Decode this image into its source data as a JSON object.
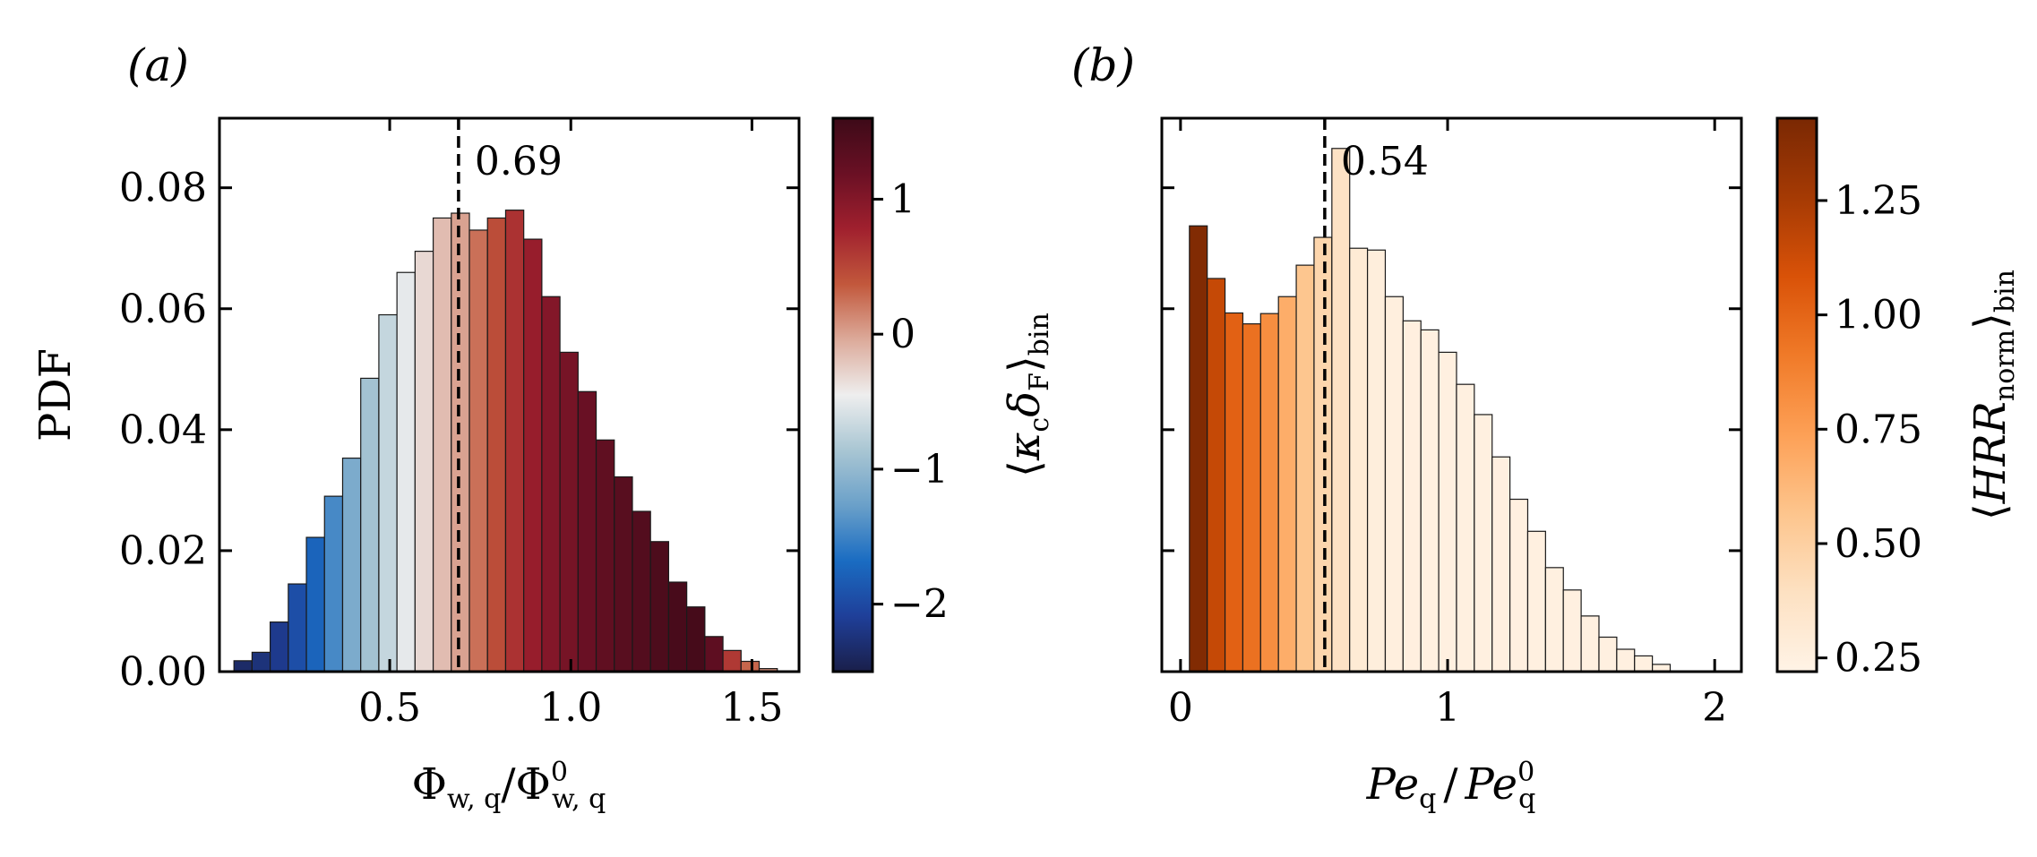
{
  "chart_data": [
    {
      "panel_label": "(a)",
      "type": "bar",
      "xlabel": "Φ_{w, q}/Φ⁰_{w, q}",
      "xlabel_main": "Φ",
      "xlabel_sub": "w, q",
      "xlabel_sep": "/",
      "xlabel_main2": "Φ",
      "xlabel_sup2": "0",
      "xlabel_sub2": "w, q",
      "ylabel": "PDF",
      "xlim": [
        0.03,
        1.63
      ],
      "ylim": [
        0,
        0.0915
      ],
      "xticks": [
        0.5,
        1.0,
        1.5
      ],
      "xtick_labels": [
        "0.5",
        "1.0",
        "1.5"
      ],
      "yticks": [
        0.0,
        0.02,
        0.04,
        0.06,
        0.08
      ],
      "ytick_labels": [
        "0.00",
        "0.02",
        "0.04",
        "0.06",
        "0.08"
      ],
      "vline": {
        "x": 0.69,
        "label": "0.69"
      },
      "bin_width": 0.05,
      "bin_starts": [
        0.07,
        0.12,
        0.17,
        0.22,
        0.27,
        0.32,
        0.37,
        0.42,
        0.47,
        0.52,
        0.57,
        0.62,
        0.67,
        0.72,
        0.77,
        0.82,
        0.87,
        0.92,
        0.97,
        1.02,
        1.07,
        1.12,
        1.17,
        1.22,
        1.27,
        1.32,
        1.37,
        1.42,
        1.47,
        1.52
      ],
      "values": [
        0.0018,
        0.0032,
        0.0082,
        0.0145,
        0.0222,
        0.029,
        0.0353,
        0.0485,
        0.059,
        0.066,
        0.0695,
        0.075,
        0.0758,
        0.073,
        0.075,
        0.0763,
        0.0715,
        0.062,
        0.0528,
        0.0463,
        0.0383,
        0.0322,
        0.0265,
        0.0215,
        0.0148,
        0.0107,
        0.0058,
        0.0035,
        0.0017,
        0.0005
      ],
      "bin_color_values": [
        -2.35,
        -2.25,
        -2.15,
        -1.95,
        -1.75,
        -1.45,
        -1.15,
        -0.9,
        -0.7,
        -0.5,
        -0.32,
        -0.15,
        0.0,
        0.25,
        0.45,
        0.65,
        0.85,
        1.0,
        1.1,
        1.2,
        1.28,
        1.35,
        1.4,
        1.45,
        1.5,
        1.52,
        1.3,
        0.6,
        0.3,
        0.1
      ],
      "colorbar": {
        "label": "⟨κ_c δ_F⟩_bin",
        "label_parts": {
          "open": "⟨",
          "kappa": "κ",
          "kappa_sub": "c",
          "delta": "δ",
          "delta_sub": "F",
          "close": "⟩",
          "bin_sub": "bin"
        },
        "vmin": -2.5,
        "vmax": 1.6,
        "ticks": [
          -2,
          -1,
          0,
          1
        ],
        "tick_labels": [
          "−2",
          "−1",
          "0",
          "1"
        ],
        "colormap": "diverging blue-white-red",
        "stops": [
          "#1a1f4a",
          "#1f3f99",
          "#1a6cc2",
          "#6aa0c9",
          "#a9c6d3",
          "#eeeeee",
          "#dcaa9a",
          "#c2583c",
          "#a0202e",
          "#6a1024",
          "#3d0a18"
        ]
      }
    },
    {
      "panel_label": "(b)",
      "type": "bar",
      "xlabel": "Pe_q / Pe⁰_q",
      "xlabel_main": "Pe",
      "xlabel_sub": "q",
      "xlabel_sep": "/",
      "xlabel_main2": "Pe",
      "xlabel_sup2": "0",
      "xlabel_sub2": "q",
      "ylabel": "",
      "xlim": [
        -0.07,
        2.1
      ],
      "ylim": [
        0,
        0.0915
      ],
      "xticks": [
        0,
        1,
        2
      ],
      "xtick_labels": [
        "0",
        "1",
        "2"
      ],
      "yticks": [
        0.0,
        0.02,
        0.04,
        0.06,
        0.08
      ],
      "ytick_labels": [],
      "vline": {
        "x": 0.54,
        "label": "0.54"
      },
      "bin_width": 0.0667,
      "bin_starts": [
        0.0333,
        0.1,
        0.1667,
        0.2333,
        0.3,
        0.3667,
        0.4333,
        0.5,
        0.5667,
        0.6333,
        0.7,
        0.7667,
        0.8333,
        0.9,
        0.9667,
        1.0333,
        1.1,
        1.1667,
        1.2333,
        1.3,
        1.3667,
        1.4333,
        1.5,
        1.5667,
        1.6333,
        1.7,
        1.7667
      ],
      "values": [
        0.0737,
        0.065,
        0.0593,
        0.0575,
        0.0592,
        0.062,
        0.0672,
        0.0718,
        0.0865,
        0.07,
        0.0697,
        0.062,
        0.058,
        0.0565,
        0.0528,
        0.0475,
        0.0425,
        0.0355,
        0.0285,
        0.0232,
        0.0172,
        0.0135,
        0.0092,
        0.0057,
        0.0037,
        0.0026,
        0.0012
      ],
      "bin_color_values": [
        1.4,
        1.15,
        1.02,
        0.95,
        0.82,
        0.68,
        0.56,
        0.46,
        0.38,
        0.3,
        0.27,
        0.26,
        0.255,
        0.25,
        0.25,
        0.25,
        0.25,
        0.25,
        0.25,
        0.25,
        0.25,
        0.25,
        0.25,
        0.25,
        0.25,
        0.25,
        0.25
      ],
      "colorbar": {
        "label": "⟨HRR_norm⟩_bin",
        "label_parts": {
          "open": "⟨",
          "main": "HRR",
          "main_sub": "norm",
          "close": "⟩",
          "bin_sub": "bin"
        },
        "vmin": 0.22,
        "vmax": 1.43,
        "ticks": [
          0.25,
          0.5,
          0.75,
          1.0,
          1.25
        ],
        "tick_labels": [
          "0.25",
          "0.50",
          "0.75",
          "1.00",
          "1.25"
        ],
        "colormap": "sequential oranges",
        "stops": [
          "#fff3e6",
          "#fde1c2",
          "#fdc58d",
          "#fda056",
          "#f07a28",
          "#d95208",
          "#a53a04",
          "#7a2803"
        ]
      }
    }
  ]
}
